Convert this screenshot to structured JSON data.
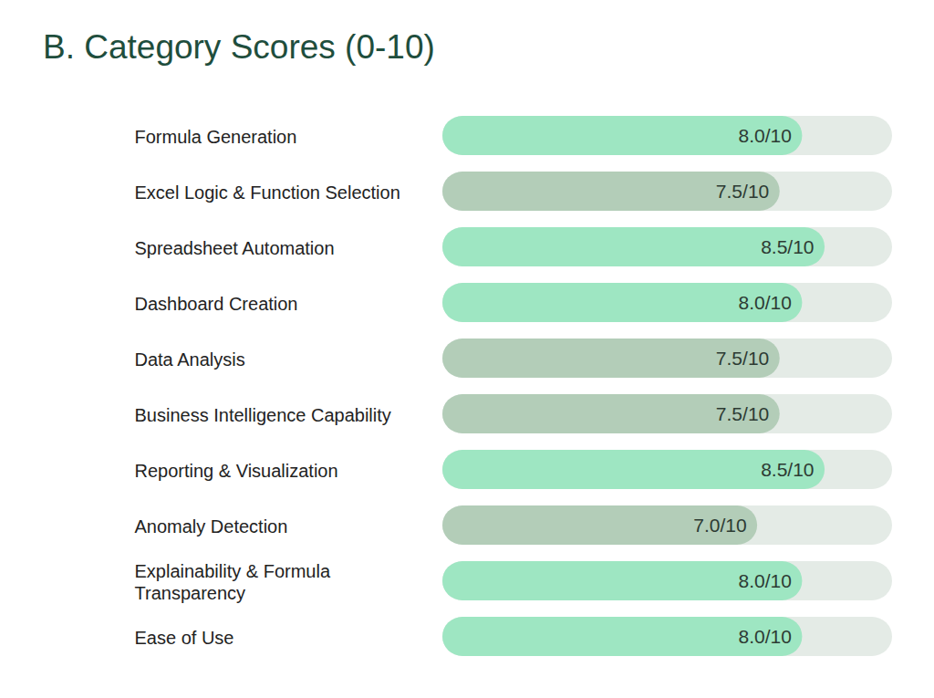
{
  "chart_data": {
    "type": "bar",
    "orientation": "horizontal",
    "title": "B. Category Scores (0-10)",
    "categories": [
      "Formula Generation",
      "Excel Logic & Function Selection",
      "Spreadsheet Automation",
      "Dashboard Creation",
      "Data Analysis",
      "Business Intelligence Capability",
      "Reporting & Visualization",
      "Anomaly Detection",
      "Explainability & Formula Transparency",
      "Ease of Use"
    ],
    "values": [
      8.0,
      7.5,
      8.5,
      8.0,
      7.5,
      7.5,
      8.5,
      7.0,
      8.0,
      8.0
    ],
    "value_labels": [
      "8.0/10",
      "7.5/10",
      "8.5/10",
      "8.0/10",
      "7.5/10",
      "7.5/10",
      "8.5/10",
      "7.0/10",
      "8.0/10",
      "8.0/10"
    ],
    "colors": [
      "#9ee6c2",
      "#b3cdb8",
      "#9ee6c2",
      "#9ee6c2",
      "#b3cdb8",
      "#b3cdb8",
      "#9ee6c2",
      "#b3cdb8",
      "#9ee6c2",
      "#9ee6c2"
    ],
    "xlim": [
      0,
      10
    ],
    "data_labels": true,
    "tick_labels": false
  }
}
